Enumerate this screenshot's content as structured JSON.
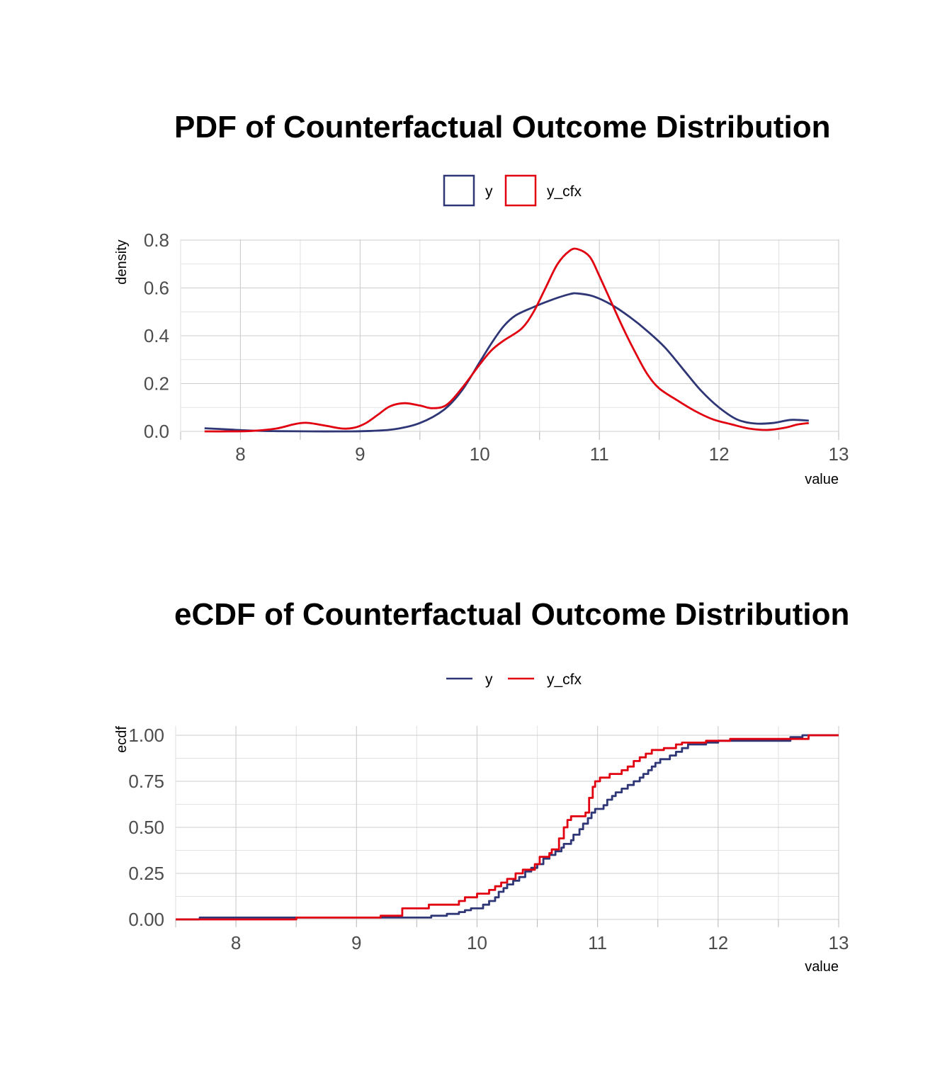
{
  "colors": {
    "y": "#2e3676",
    "y_cfx": "#e0000f"
  },
  "chart_data": [
    {
      "type": "line",
      "title": "PDF of Counterfactual Outcome Distribution",
      "xlabel": "value",
      "ylabel": "density",
      "xlim": [
        7.5,
        13
      ],
      "ylim": [
        0,
        0.8
      ],
      "x_ticks": [
        "8",
        "9",
        "10",
        "11",
        "12",
        "13"
      ],
      "y_ticks": [
        "0.0",
        "0.2",
        "0.4",
        "0.6",
        "0.8"
      ],
      "legend_position": "top",
      "legend_style": "box",
      "grid": true,
      "series": [
        {
          "name": "y",
          "color": "#2e3676",
          "points": [
            [
              7.7,
              0.013
            ],
            [
              7.9,
              0.008
            ],
            [
              8.1,
              0.003
            ],
            [
              8.3,
              0.001
            ],
            [
              8.6,
              0.0
            ],
            [
              8.9,
              0.0
            ],
            [
              9.1,
              0.002
            ],
            [
              9.3,
              0.01
            ],
            [
              9.5,
              0.035
            ],
            [
              9.7,
              0.09
            ],
            [
              9.85,
              0.17
            ],
            [
              10.0,
              0.29
            ],
            [
              10.1,
              0.37
            ],
            [
              10.2,
              0.44
            ],
            [
              10.3,
              0.485
            ],
            [
              10.45,
              0.52
            ],
            [
              10.6,
              0.55
            ],
            [
              10.75,
              0.574
            ],
            [
              10.82,
              0.577
            ],
            [
              10.95,
              0.565
            ],
            [
              11.1,
              0.53
            ],
            [
              11.25,
              0.48
            ],
            [
              11.4,
              0.42
            ],
            [
              11.55,
              0.35
            ],
            [
              11.7,
              0.26
            ],
            [
              11.85,
              0.17
            ],
            [
              12.0,
              0.1
            ],
            [
              12.15,
              0.05
            ],
            [
              12.3,
              0.033
            ],
            [
              12.45,
              0.035
            ],
            [
              12.6,
              0.048
            ],
            [
              12.75,
              0.045
            ]
          ]
        },
        {
          "name": "y_cfx",
          "color": "#e0000f",
          "points": [
            [
              7.7,
              0.0
            ],
            [
              7.9,
              0.0
            ],
            [
              8.1,
              0.002
            ],
            [
              8.3,
              0.012
            ],
            [
              8.45,
              0.03
            ],
            [
              8.55,
              0.036
            ],
            [
              8.7,
              0.025
            ],
            [
              8.85,
              0.012
            ],
            [
              8.95,
              0.015
            ],
            [
              9.05,
              0.035
            ],
            [
              9.15,
              0.07
            ],
            [
              9.25,
              0.105
            ],
            [
              9.37,
              0.118
            ],
            [
              9.5,
              0.108
            ],
            [
              9.6,
              0.097
            ],
            [
              9.72,
              0.11
            ],
            [
              9.85,
              0.18
            ],
            [
              10.0,
              0.28
            ],
            [
              10.1,
              0.34
            ],
            [
              10.2,
              0.38
            ],
            [
              10.35,
              0.43
            ],
            [
              10.45,
              0.5
            ],
            [
              10.55,
              0.6
            ],
            [
              10.65,
              0.7
            ],
            [
              10.75,
              0.755
            ],
            [
              10.82,
              0.762
            ],
            [
              10.92,
              0.73
            ],
            [
              11.0,
              0.65
            ],
            [
              11.1,
              0.54
            ],
            [
              11.2,
              0.43
            ],
            [
              11.3,
              0.33
            ],
            [
              11.4,
              0.24
            ],
            [
              11.5,
              0.18
            ],
            [
              11.65,
              0.13
            ],
            [
              11.8,
              0.085
            ],
            [
              11.95,
              0.05
            ],
            [
              12.1,
              0.03
            ],
            [
              12.25,
              0.012
            ],
            [
              12.4,
              0.006
            ],
            [
              12.55,
              0.015
            ],
            [
              12.65,
              0.028
            ],
            [
              12.75,
              0.035
            ]
          ]
        }
      ]
    },
    {
      "type": "line",
      "title": "eCDF of Counterfactual Outcome Distribution",
      "xlabel": "value",
      "ylabel": "ecdf",
      "xlim": [
        7.5,
        13
      ],
      "ylim": [
        0,
        1
      ],
      "x_ticks": [
        "8",
        "9",
        "10",
        "11",
        "12",
        "13"
      ],
      "y_ticks": [
        "0.00",
        "0.25",
        "0.50",
        "0.75",
        "1.00"
      ],
      "legend_position": "top",
      "legend_style": "line",
      "grid": true,
      "series": [
        {
          "name": "y",
          "color": "#2e3676",
          "step": true,
          "points": [
            [
              7.5,
              0.0
            ],
            [
              7.7,
              0.01
            ],
            [
              9.6,
              0.01
            ],
            [
              9.62,
              0.02
            ],
            [
              9.75,
              0.03
            ],
            [
              9.85,
              0.04
            ],
            [
              9.9,
              0.05
            ],
            [
              9.95,
              0.06
            ],
            [
              10.05,
              0.08
            ],
            [
              10.1,
              0.1
            ],
            [
              10.15,
              0.12
            ],
            [
              10.18,
              0.15
            ],
            [
              10.22,
              0.17
            ],
            [
              10.25,
              0.19
            ],
            [
              10.3,
              0.21
            ],
            [
              10.35,
              0.23
            ],
            [
              10.4,
              0.26
            ],
            [
              10.45,
              0.28
            ],
            [
              10.5,
              0.3
            ],
            [
              10.55,
              0.33
            ],
            [
              10.6,
              0.35
            ],
            [
              10.65,
              0.37
            ],
            [
              10.7,
              0.39
            ],
            [
              10.72,
              0.41
            ],
            [
              10.78,
              0.43
            ],
            [
              10.8,
              0.46
            ],
            [
              10.85,
              0.49
            ],
            [
              10.88,
              0.52
            ],
            [
              10.92,
              0.55
            ],
            [
              10.95,
              0.58
            ],
            [
              10.98,
              0.6
            ],
            [
              11.05,
              0.62
            ],
            [
              11.08,
              0.65
            ],
            [
              11.12,
              0.67
            ],
            [
              11.15,
              0.69
            ],
            [
              11.2,
              0.71
            ],
            [
              11.25,
              0.73
            ],
            [
              11.3,
              0.75
            ],
            [
              11.35,
              0.77
            ],
            [
              11.38,
              0.79
            ],
            [
              11.42,
              0.81
            ],
            [
              11.45,
              0.83
            ],
            [
              11.48,
              0.85
            ],
            [
              11.52,
              0.87
            ],
            [
              11.6,
              0.89
            ],
            [
              11.65,
              0.91
            ],
            [
              11.7,
              0.93
            ],
            [
              11.75,
              0.95
            ],
            [
              11.9,
              0.96
            ],
            [
              12.0,
              0.97
            ],
            [
              12.6,
              0.99
            ],
            [
              12.7,
              1.0
            ],
            [
              13.0,
              1.0
            ]
          ]
        },
        {
          "name": "y_cfx",
          "color": "#e0000f",
          "step": true,
          "points": [
            [
              7.5,
              0.0
            ],
            [
              8.5,
              0.01
            ],
            [
              9.2,
              0.02
            ],
            [
              9.38,
              0.06
            ],
            [
              9.6,
              0.08
            ],
            [
              9.85,
              0.1
            ],
            [
              9.9,
              0.12
            ],
            [
              10.0,
              0.14
            ],
            [
              10.1,
              0.16
            ],
            [
              10.15,
              0.18
            ],
            [
              10.2,
              0.2
            ],
            [
              10.25,
              0.22
            ],
            [
              10.32,
              0.25
            ],
            [
              10.38,
              0.27
            ],
            [
              10.48,
              0.3
            ],
            [
              10.52,
              0.34
            ],
            [
              10.6,
              0.36
            ],
            [
              10.62,
              0.38
            ],
            [
              10.68,
              0.44
            ],
            [
              10.72,
              0.5
            ],
            [
              10.75,
              0.54
            ],
            [
              10.78,
              0.56
            ],
            [
              10.9,
              0.58
            ],
            [
              10.93,
              0.66
            ],
            [
              10.96,
              0.72
            ],
            [
              10.98,
              0.75
            ],
            [
              11.02,
              0.77
            ],
            [
              11.1,
              0.79
            ],
            [
              11.2,
              0.81
            ],
            [
              11.25,
              0.83
            ],
            [
              11.3,
              0.86
            ],
            [
              11.35,
              0.88
            ],
            [
              11.4,
              0.9
            ],
            [
              11.45,
              0.92
            ],
            [
              11.55,
              0.93
            ],
            [
              11.65,
              0.95
            ],
            [
              11.7,
              0.96
            ],
            [
              11.9,
              0.97
            ],
            [
              12.1,
              0.98
            ],
            [
              12.75,
              1.0
            ],
            [
              13.0,
              1.0
            ]
          ]
        }
      ]
    }
  ]
}
